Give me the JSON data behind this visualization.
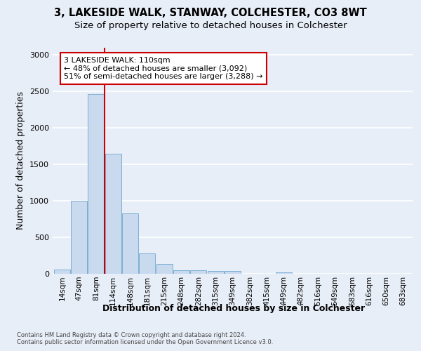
{
  "title_line1": "3, LAKESIDE WALK, STANWAY, COLCHESTER, CO3 8WT",
  "title_line2": "Size of property relative to detached houses in Colchester",
  "xlabel": "Distribution of detached houses by size in Colchester",
  "ylabel": "Number of detached properties",
  "categories": [
    "14sqm",
    "47sqm",
    "81sqm",
    "114sqm",
    "148sqm",
    "181sqm",
    "215sqm",
    "248sqm",
    "282sqm",
    "315sqm",
    "349sqm",
    "382sqm",
    "415sqm",
    "449sqm",
    "482sqm",
    "516sqm",
    "549sqm",
    "583sqm",
    "616sqm",
    "650sqm",
    "683sqm"
  ],
  "values": [
    55,
    1000,
    2460,
    1640,
    830,
    275,
    130,
    45,
    45,
    40,
    35,
    0,
    0,
    20,
    0,
    0,
    0,
    0,
    0,
    0,
    0
  ],
  "bar_color": "#c9d9ee",
  "bar_edge_color": "#7bafd4",
  "vline_index": 2.5,
  "vline_color": "#cc0000",
  "annotation_text": "3 LAKESIDE WALK: 110sqm\n← 48% of detached houses are smaller (3,092)\n51% of semi-detached houses are larger (3,288) →",
  "annotation_box_edgecolor": "#cc0000",
  "ylim_max": 3100,
  "yticks": [
    0,
    500,
    1000,
    1500,
    2000,
    2500,
    3000
  ],
  "bg_color": "#e8eef8",
  "grid_color": "#ffffff",
  "title_fontsize": 10.5,
  "subtitle_fontsize": 9.5,
  "axis_label_fontsize": 9,
  "tick_fontsize": 7.5,
  "footnote": "Contains HM Land Registry data © Crown copyright and database right 2024.\nContains public sector information licensed under the Open Government Licence v3.0."
}
